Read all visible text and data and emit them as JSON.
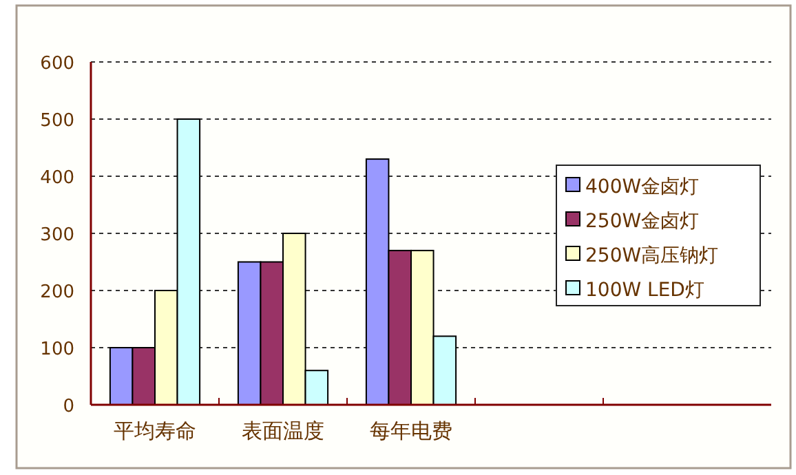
{
  "chart_data": {
    "type": "bar",
    "categories": [
      "平均寿命",
      "表面温度",
      "每年电费",
      null
    ],
    "series": [
      {
        "name": "400W金卤灯",
        "color": "#9999ff",
        "values": [
          100,
          250,
          430,
          null
        ]
      },
      {
        "name": "250W金卤灯",
        "color": "#993366",
        "values": [
          100,
          250,
          270,
          null
        ]
      },
      {
        "name": "250W高压钠灯",
        "color": "#ffffcc",
        "values": [
          200,
          300,
          270,
          null
        ]
      },
      {
        "name": "100W LED灯",
        "color": "#ccffff",
        "values": [
          500,
          60,
          120,
          null
        ]
      }
    ],
    "ylim": [
      0,
      600
    ],
    "yticks": [
      0,
      100,
      200,
      300,
      400,
      500,
      600
    ],
    "grid": "y",
    "legend": "right"
  }
}
